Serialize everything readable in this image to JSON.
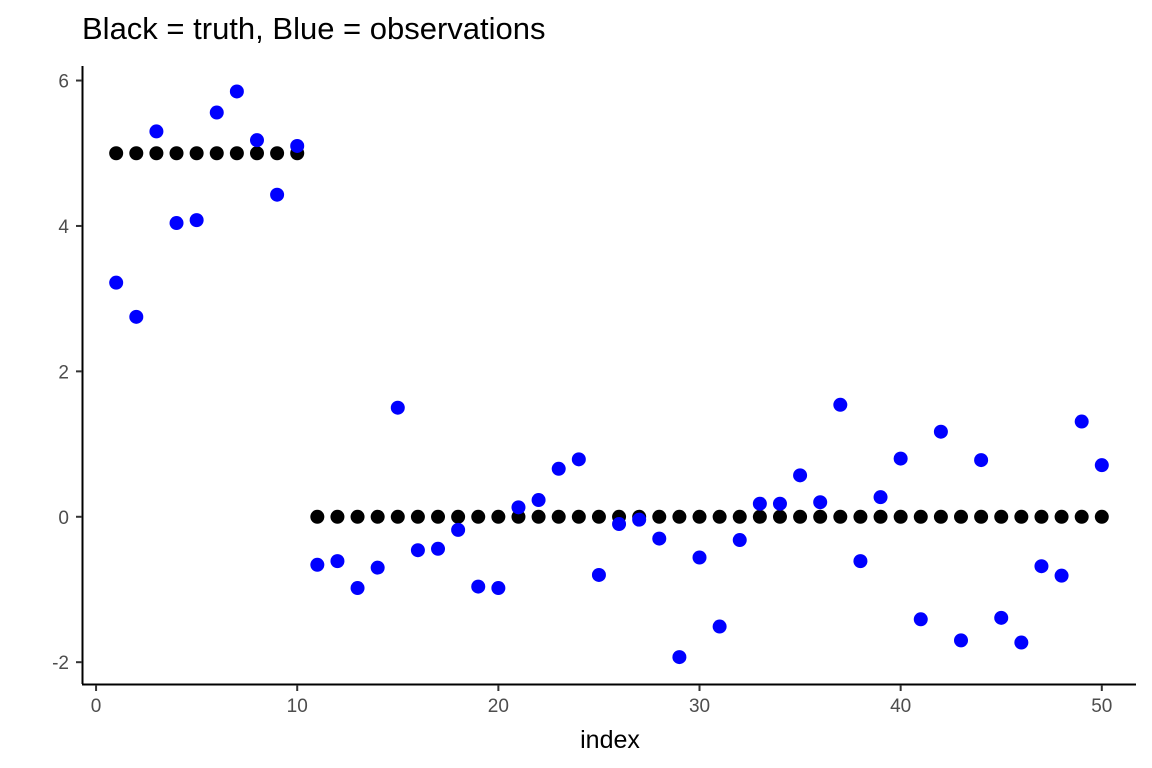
{
  "chart_data": {
    "type": "scatter",
    "title": "Black = truth, Blue = observations",
    "xlabel": "index",
    "ylabel": "",
    "xlim": [
      -0.6,
      51.7
    ],
    "ylim": [
      -2.3,
      6.2
    ],
    "x_ticks": [
      0,
      10,
      20,
      30,
      40,
      50
    ],
    "x_tick_labels": [
      "0",
      "10",
      "20",
      "30",
      "40",
      "50"
    ],
    "y_ticks": [
      -2,
      0,
      2,
      4,
      6
    ],
    "y_tick_labels": [
      "-2",
      "0",
      "2",
      "4",
      "6"
    ],
    "grid": false,
    "legend": "none",
    "series": [
      {
        "color": "#000000",
        "x": [
          1,
          2,
          3,
          4,
          5,
          6,
          7,
          8,
          9,
          10,
          11,
          12,
          13,
          14,
          15,
          16,
          17,
          18,
          19,
          20,
          21,
          22,
          23,
          24,
          25,
          26,
          27,
          28,
          29,
          30,
          31,
          32,
          33,
          34,
          35,
          36,
          37,
          38,
          39,
          40,
          41,
          42,
          43,
          44,
          45,
          46,
          47,
          48,
          49,
          50
        ],
        "values": [
          5,
          5,
          5,
          5,
          5,
          5,
          5,
          5,
          5,
          5,
          0,
          0,
          0,
          0,
          0,
          0,
          0,
          0,
          0,
          0,
          0,
          0,
          0,
          0,
          0,
          0,
          0,
          0,
          0,
          0,
          0,
          0,
          0,
          0,
          0,
          0,
          0,
          0,
          0,
          0,
          0,
          0,
          0,
          0,
          0,
          0,
          0,
          0,
          0,
          0
        ]
      },
      {
        "color": "#0000ff",
        "x": [
          1,
          2,
          3,
          4,
          5,
          6,
          7,
          8,
          9,
          10,
          11,
          12,
          13,
          14,
          15,
          16,
          17,
          18,
          19,
          20,
          21,
          22,
          23,
          24,
          25,
          26,
          27,
          28,
          29,
          30,
          31,
          32,
          33,
          34,
          35,
          36,
          37,
          38,
          39,
          40,
          41,
          42,
          43,
          44,
          45,
          46,
          47,
          48,
          49,
          50
        ],
        "values": [
          3.22,
          2.75,
          5.3,
          4.04,
          4.08,
          5.56,
          5.85,
          5.18,
          4.43,
          5.1,
          -0.66,
          -0.61,
          -0.98,
          -0.7,
          1.5,
          -0.46,
          -0.44,
          -0.18,
          -0.96,
          -0.98,
          0.13,
          0.23,
          0.66,
          0.79,
          -0.8,
          -0.1,
          -0.04,
          -0.3,
          -1.93,
          -0.56,
          -1.51,
          -0.32,
          0.18,
          0.18,
          0.57,
          0.2,
          1.54,
          -0.61,
          0.27,
          0.8,
          -1.41,
          1.17,
          -1.7,
          0.78,
          -1.39,
          -1.73,
          -0.68,
          -0.81,
          1.31,
          0.71
        ]
      }
    ]
  }
}
